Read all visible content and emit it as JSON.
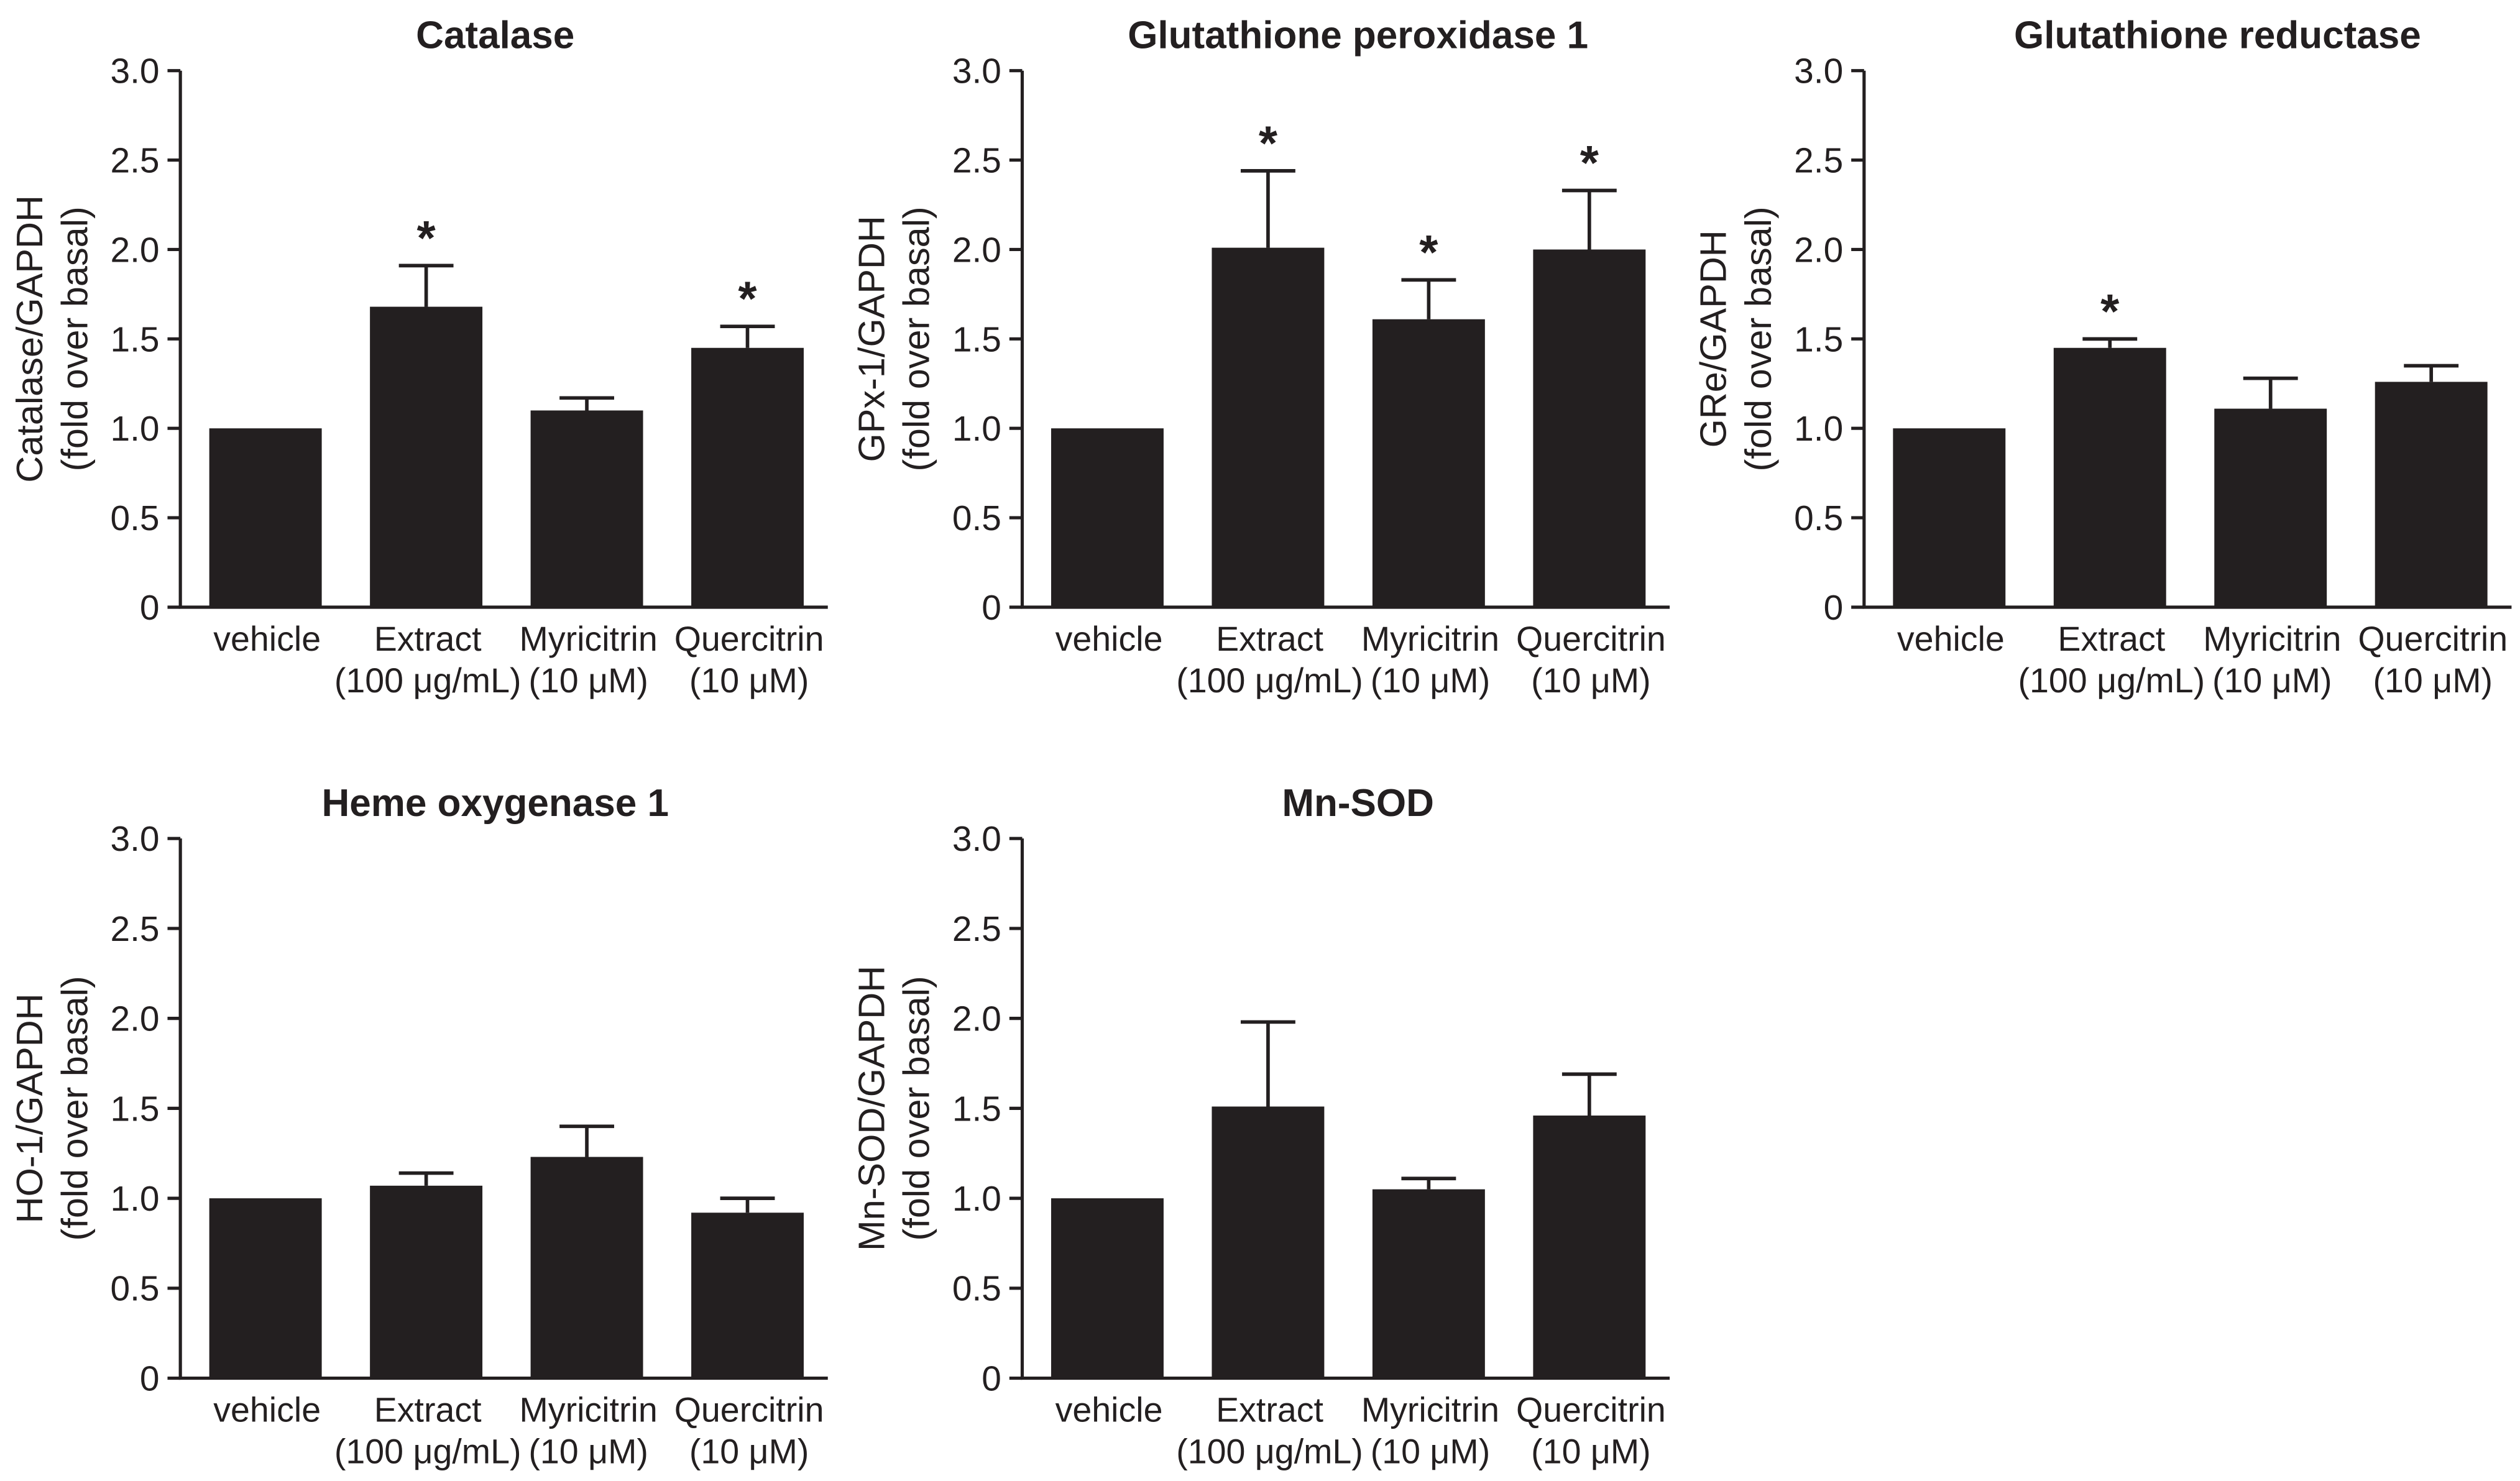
{
  "chart_data": [
    {
      "type": "bar",
      "title": "Catalase",
      "ylabel": [
        "Catalase/GAPDH",
        "(fold over basal)"
      ],
      "categories": [
        "vehicle",
        "Extract",
        "Myricitrin",
        "Quercitrin"
      ],
      "category_notes": [
        null,
        "(100 μg/mL)",
        "(10 μM)",
        "(10 μM)"
      ],
      "values": [
        1.0,
        1.68,
        1.1,
        1.45
      ],
      "errors": [
        0,
        0.23,
        0.07,
        0.12
      ],
      "significant": [
        false,
        true,
        false,
        true
      ],
      "significance_marker": "*",
      "ylim": [
        0,
        3.0
      ],
      "yticks": [
        0,
        0.5,
        1.0,
        1.5,
        2.0,
        2.5,
        3.0
      ],
      "ytick_labels": [
        "0",
        "0.5",
        "1.0",
        "1.5",
        "2.0",
        "2.5",
        "3.0"
      ],
      "bar_color": "#231f20",
      "grid": false
    },
    {
      "type": "bar",
      "title": "Glutathione peroxidase 1",
      "ylabel": [
        "GPx-1/GAPDH",
        "(fold over basal)"
      ],
      "categories": [
        "vehicle",
        "Extract",
        "Myricitrin",
        "Quercitrin"
      ],
      "category_notes": [
        null,
        "(100 μg/mL)",
        "(10 μM)",
        "(10 μM)"
      ],
      "values": [
        1.0,
        2.01,
        1.61,
        2.0
      ],
      "errors": [
        0,
        0.43,
        0.22,
        0.33
      ],
      "significant": [
        false,
        true,
        true,
        true
      ],
      "significance_marker": "*",
      "ylim": [
        0,
        3.0
      ],
      "yticks": [
        0,
        0.5,
        1.0,
        1.5,
        2.0,
        2.5,
        3.0
      ],
      "ytick_labels": [
        "0",
        "0.5",
        "1.0",
        "1.5",
        "2.0",
        "2.5",
        "3.0"
      ],
      "bar_color": "#231f20",
      "grid": false
    },
    {
      "type": "bar",
      "title": "Glutathione reductase",
      "ylabel": [
        "GRe/GAPDH",
        "(fold over basal)"
      ],
      "categories": [
        "vehicle",
        "Extract",
        "Myricitrin",
        "Quercitrin"
      ],
      "category_notes": [
        null,
        "(100 μg/mL)",
        "(10 μM)",
        "(10 μM)"
      ],
      "values": [
        1.0,
        1.45,
        1.11,
        1.26
      ],
      "errors": [
        0,
        0.05,
        0.17,
        0.09
      ],
      "significant": [
        false,
        true,
        false,
        false
      ],
      "significance_marker": "*",
      "ylim": [
        0,
        3.0
      ],
      "yticks": [
        0,
        0.5,
        1.0,
        1.5,
        2.0,
        2.5,
        3.0
      ],
      "ytick_labels": [
        "0",
        "0.5",
        "1.0",
        "1.5",
        "2.0",
        "2.5",
        "3.0"
      ],
      "bar_color": "#231f20",
      "grid": false
    },
    {
      "type": "bar",
      "title": "Heme oxygenase 1",
      "ylabel": [
        "HO-1/GAPDH",
        "(fold over basal)"
      ],
      "categories": [
        "vehicle",
        "Extract",
        "Myricitrin",
        "Quercitrin"
      ],
      "category_notes": [
        null,
        "(100 μg/mL)",
        "(10 μM)",
        "(10 μM)"
      ],
      "values": [
        1.0,
        1.07,
        1.23,
        0.92
      ],
      "errors": [
        0,
        0.07,
        0.17,
        0.08
      ],
      "significant": [
        false,
        false,
        false,
        false
      ],
      "ylim": [
        0,
        3.0
      ],
      "yticks": [
        0,
        0.5,
        1.0,
        1.5,
        2.0,
        2.5,
        3.0
      ],
      "ytick_labels": [
        "0",
        "0.5",
        "1.0",
        "1.5",
        "2.0",
        "2.5",
        "3.0"
      ],
      "bar_color": "#231f20",
      "grid": false
    },
    {
      "type": "bar",
      "title": "Mn-SOD",
      "ylabel": [
        "Mn-SOD/GAPDH",
        "(fold over basal)"
      ],
      "categories": [
        "vehicle",
        "Extract",
        "Myricitrin",
        "Quercitrin"
      ],
      "category_notes": [
        null,
        "(100 μg/mL)",
        "(10 μM)",
        "(10 μM)"
      ],
      "values": [
        1.0,
        1.51,
        1.05,
        1.46
      ],
      "errors": [
        0,
        0.47,
        0.06,
        0.23
      ],
      "significant": [
        false,
        false,
        false,
        false
      ],
      "ylim": [
        0,
        3.0
      ],
      "yticks": [
        0,
        0.5,
        1.0,
        1.5,
        2.0,
        2.5,
        3.0
      ],
      "ytick_labels": [
        "0",
        "0.5",
        "1.0",
        "1.5",
        "2.0",
        "2.5",
        "3.0"
      ],
      "bar_color": "#231f20",
      "grid": false
    }
  ]
}
